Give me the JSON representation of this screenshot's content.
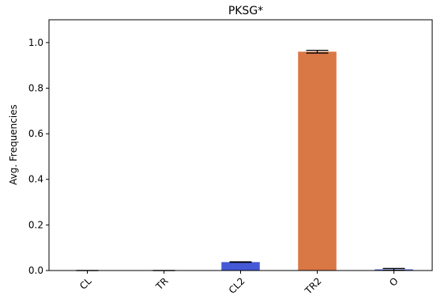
{
  "chart_data": {
    "type": "bar",
    "title": "PKSG*",
    "xlabel": "",
    "ylabel": "Avg. Frequencies",
    "categories": [
      "CL",
      "TR",
      "CL2",
      "TR2",
      "O"
    ],
    "values": [
      0.0,
      0.0,
      0.037,
      0.96,
      0.005
    ],
    "errors": [
      0.0,
      0.0,
      0.001,
      0.006,
      0.004
    ],
    "colors": [
      "#4459d6",
      "#4459d6",
      "#4459d6",
      "#d97745",
      "#4459d6"
    ],
    "ylim": [
      0,
      1.1
    ],
    "yticks": [
      0.0,
      0.2,
      0.4,
      0.6,
      0.8,
      1.0
    ],
    "ytick_labels": [
      "0.0",
      "0.2",
      "0.4",
      "0.6",
      "0.8",
      "1.0"
    ],
    "grid": false,
    "legend": "none"
  }
}
